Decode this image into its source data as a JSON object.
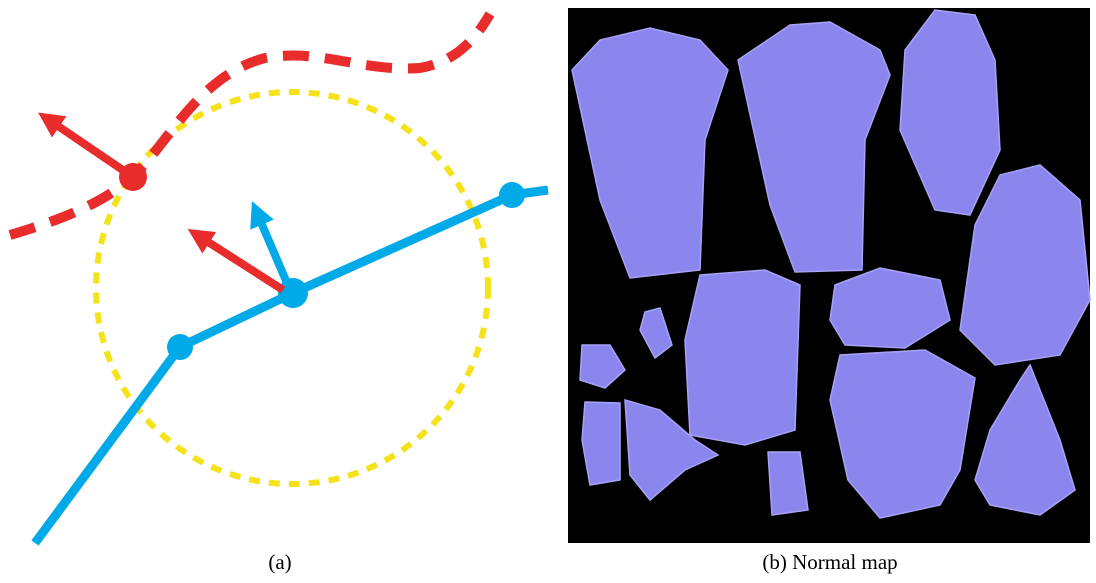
{
  "figure": {
    "panels": [
      {
        "caption": "(a)"
      },
      {
        "caption": "(b) Normal map"
      }
    ]
  }
}
